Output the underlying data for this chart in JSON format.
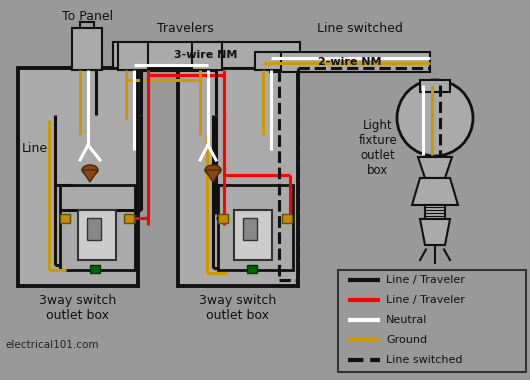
{
  "bg_color": "#999999",
  "box_face": "#aaaaaa",
  "box_edge": "#111111",
  "wire_black": "#111111",
  "wire_red": "#ff0000",
  "wire_white": "#ffffff",
  "wire_gold": "#cc9900",
  "wire_nut": "#8B4513",
  "screw_orange": "#cc8800",
  "screw_green": "#006600",
  "switch_face": "#cccccc",
  "label_to_panel": "To Panel",
  "label_travelers": "Travelers",
  "label_line_switched": "Line switched",
  "label_3wire": "3-wire NM",
  "label_2wire": "2-wire NM",
  "label_line": "Line",
  "label_light": "Light\nfixture\noutlet\nbox",
  "box1_label": "3way switch\noutlet box",
  "box2_label": "3way switch\noutlet box",
  "watermark": "electrical101.com",
  "leg_black_label": "Line / Traveler",
  "leg_red_label": "Line / Traveler",
  "leg_white_label": "Neutral",
  "leg_gold_label": "Ground",
  "leg_dashed_label": "Line switched"
}
